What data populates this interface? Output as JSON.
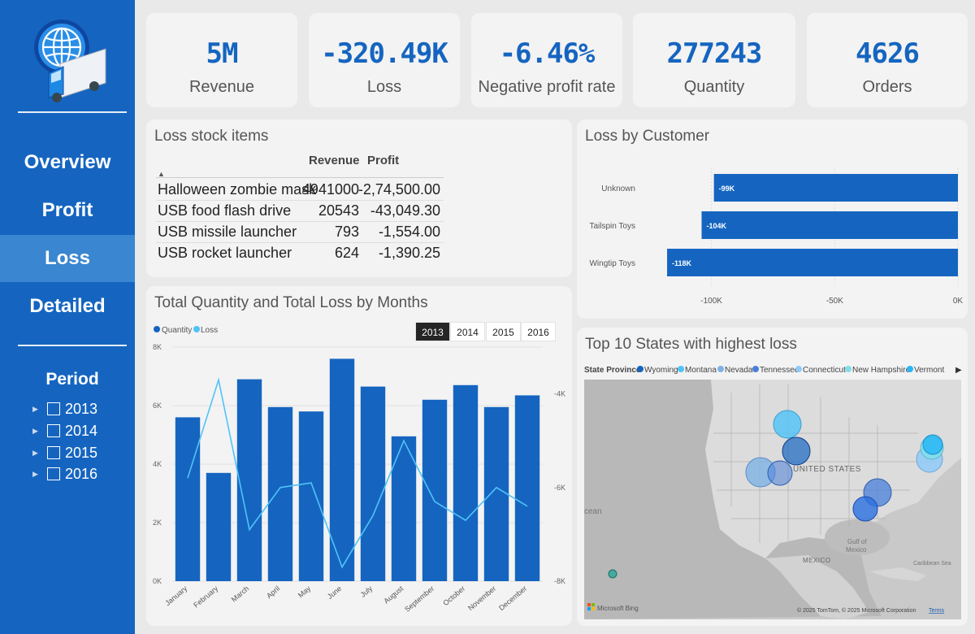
{
  "nav": {
    "items": [
      {
        "label": "Overview",
        "active": false
      },
      {
        "label": "Profit",
        "active": false
      },
      {
        "label": "Loss",
        "active": true
      },
      {
        "label": "Detailed",
        "active": false
      }
    ]
  },
  "period": {
    "title": "Period",
    "years": [
      "2013",
      "2014",
      "2015",
      "2016"
    ]
  },
  "kpis": [
    {
      "value": "5M",
      "label": "Revenue"
    },
    {
      "value": "-320.49K",
      "label": "Loss"
    },
    {
      "value": "-6.46%",
      "label": "Negative profit rate"
    },
    {
      "value": "277243",
      "label": "Quantity"
    },
    {
      "value": "4626",
      "label": "Orders"
    }
  ],
  "loss_stock": {
    "title": "Loss stock items",
    "columns": [
      "",
      "Revenue",
      "Profit"
    ],
    "rows": [
      {
        "item": "Halloween zombie mask",
        "revenue": "4941000",
        "profit": "-2,74,500.00"
      },
      {
        "item": "USB food flash drive",
        "revenue": "20543",
        "profit": "-43,049.30"
      },
      {
        "item": "USB missile launcher",
        "revenue": "793",
        "profit": "-1,554.00"
      },
      {
        "item": "USB rocket launcher",
        "revenue": "624",
        "profit": "-1,390.25"
      }
    ]
  },
  "months_chart": {
    "title": "Total Quantity and Total Loss by Months",
    "legend": [
      "Quantity",
      "Loss"
    ],
    "year_buttons": [
      "2013",
      "2014",
      "2015",
      "2016"
    ],
    "selected_year": "2013",
    "colors": {
      "bar": "#1565c0",
      "line": "#4fc3f7"
    }
  },
  "customer_chart": {
    "title": "Loss by Customer",
    "color": "#1565c0"
  },
  "states_map": {
    "title": "Top 10 States with highest loss",
    "legend_title": "State Province",
    "legend": [
      {
        "name": "Wyoming",
        "color": "#1565c0"
      },
      {
        "name": "Montana",
        "color": "#4fc3f7"
      },
      {
        "name": "Nevada",
        "color": "#7fb3e6"
      },
      {
        "name": "Tennessee",
        "color": "#4a7fd9"
      },
      {
        "name": "Connecticut",
        "color": "#90caf9"
      },
      {
        "name": "New Hampshire",
        "color": "#80deea"
      },
      {
        "name": "Vermont",
        "color": "#29b6f6"
      }
    ],
    "labels": {
      "country": "UNITED STATES",
      "gulf": "Gulf of",
      "gulf2": "Mexico",
      "mexico": "MEXICO",
      "ocean": "cean",
      "caribbean": "Caribbean Sea",
      "bing": "Microsoft Bing",
      "copyright": "© 2025 TomTom, © 2025 Microsoft Corporation",
      "terms": "Terms"
    }
  },
  "chart_data": [
    {
      "type": "bar",
      "title": "Total Quantity and Total Loss by Months",
      "categories": [
        "January",
        "February",
        "March",
        "April",
        "May",
        "June",
        "July",
        "August",
        "September",
        "October",
        "November",
        "December"
      ],
      "series": [
        {
          "name": "Quantity",
          "type": "bar",
          "axis": "left",
          "values": [
            5600,
            3700,
            6900,
            5950,
            5800,
            7600,
            6650,
            4950,
            6200,
            6700,
            5950,
            6350
          ]
        },
        {
          "name": "Loss",
          "type": "line",
          "axis": "right",
          "values": [
            -5.8,
            -3.7,
            -6.9,
            -6.0,
            -5.9,
            -7.7,
            -6.6,
            -5.0,
            -6.3,
            -6.7,
            -6.0,
            -6.4
          ]
        }
      ],
      "y_left": {
        "ticks": [
          "0K",
          "2K",
          "4K",
          "6K",
          "8K"
        ],
        "ylim": [
          0,
          8000
        ]
      },
      "y_right": {
        "ticks": [
          "-4K",
          "-6K",
          "-8K"
        ],
        "ylim": [
          -3.0,
          -8.0
        ]
      },
      "legend_position": "top-left"
    },
    {
      "type": "bar",
      "orientation": "horizontal",
      "title": "Loss by Customer",
      "categories": [
        "Unknown",
        "Tailspin Toys",
        "Wingtip Toys"
      ],
      "values": [
        -99,
        -104,
        -118
      ],
      "data_labels": [
        "-99K",
        "-104K",
        "-118K"
      ],
      "x_ticks": [
        "-100K",
        "-50K",
        "0K"
      ],
      "xlim": [
        -119,
        0
      ]
    }
  ]
}
